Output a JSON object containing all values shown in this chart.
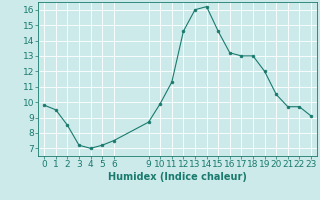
{
  "x": [
    0,
    1,
    2,
    3,
    4,
    5,
    6,
    9,
    10,
    11,
    12,
    13,
    14,
    15,
    16,
    17,
    18,
    19,
    20,
    21,
    22,
    23
  ],
  "y": [
    9.8,
    9.5,
    8.5,
    7.2,
    7.0,
    7.2,
    7.5,
    8.7,
    9.9,
    11.3,
    14.6,
    16.0,
    16.2,
    14.6,
    13.2,
    13.0,
    13.0,
    12.0,
    10.5,
    9.7,
    9.7,
    9.1
  ],
  "line_color": "#1a7a6e",
  "marker": "o",
  "marker_size": 2,
  "bg_color": "#cceaea",
  "grid_color": "#ffffff",
  "grid_minor_color": "#e8f5f5",
  "xlabel": "Humidex (Indice chaleur)",
  "ylim": [
    6.5,
    16.5
  ],
  "xlim": [
    -0.5,
    23.5
  ],
  "xticks": [
    0,
    1,
    2,
    3,
    4,
    5,
    6,
    9,
    10,
    11,
    12,
    13,
    14,
    15,
    16,
    17,
    18,
    19,
    20,
    21,
    22,
    23
  ],
  "yticks": [
    7,
    8,
    9,
    10,
    11,
    12,
    13,
    14,
    15,
    16
  ],
  "xlabel_fontsize": 7,
  "tick_fontsize": 6.5
}
